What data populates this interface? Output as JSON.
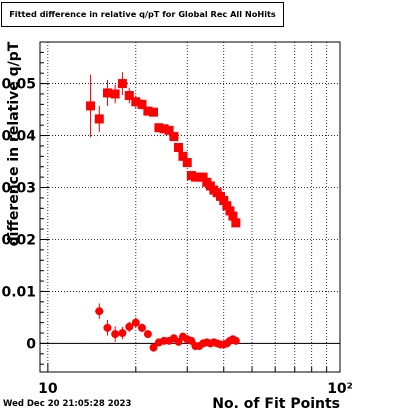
{
  "title": "Fitted difference in relative q/pT for Global Rec All NoHits",
  "timestamp": "Wed Dec 20 21:05:28 2023",
  "colors": {
    "marker": "#ff0000",
    "axis": "#000000",
    "grid": "#000000"
  },
  "chart_data": {
    "type": "scatter",
    "title": "Fitted difference in relative q/pT for Global Rec All NoHits",
    "xlabel": "No. of Fit Points",
    "ylabel": "difference in relative q/pT",
    "x_scale": "log",
    "xlim": [
      9.4,
      100
    ],
    "ylim": [
      -0.0055,
      0.058
    ],
    "grid": true,
    "x_ticks": [
      {
        "value": 10,
        "label": "10"
      },
      {
        "value": 100,
        "label": "10²"
      }
    ],
    "y_ticks": [
      {
        "value": 0,
        "label": "0"
      },
      {
        "value": 0.01,
        "label": "0.01"
      },
      {
        "value": 0.02,
        "label": "0.02"
      },
      {
        "value": 0.03,
        "label": "0.03"
      },
      {
        "value": 0.04,
        "label": "0.04"
      },
      {
        "value": 0.05,
        "label": "0.05"
      }
    ],
    "series": [
      {
        "marker": "square",
        "color": "#ff0000",
        "points": [
          {
            "x": 14,
            "y": 0.0457,
            "err": 0.006
          },
          {
            "x": 15,
            "y": 0.0432,
            "err": 0.0025
          },
          {
            "x": 16,
            "y": 0.0482,
            "err": 0.0025
          },
          {
            "x": 17,
            "y": 0.048,
            "err": 0.0018
          },
          {
            "x": 18,
            "y": 0.05,
            "err": 0.0022
          },
          {
            "x": 19,
            "y": 0.0477,
            "err": 0.0015
          },
          {
            "x": 20,
            "y": 0.0465,
            "err": 0.0012
          },
          {
            "x": 21,
            "y": 0.046,
            "err": 0.001
          },
          {
            "x": 22,
            "y": 0.0447,
            "err": 0.0008
          },
          {
            "x": 23,
            "y": 0.0445,
            "err": 0.0007
          },
          {
            "x": 24,
            "y": 0.0415,
            "err": 0.0006
          },
          {
            "x": 25,
            "y": 0.0413,
            "err": 0.0005
          },
          {
            "x": 26,
            "y": 0.041,
            "err": 0.0005
          },
          {
            "x": 27,
            "y": 0.0398,
            "err": 0.0004
          },
          {
            "x": 28,
            "y": 0.0377,
            "err": 0.0004
          },
          {
            "x": 29,
            "y": 0.036,
            "err": 0.0004
          },
          {
            "x": 30,
            "y": 0.0348,
            "err": 0.0003
          },
          {
            "x": 31,
            "y": 0.0323,
            "err": 0.0003
          },
          {
            "x": 32,
            "y": 0.032,
            "err": 0.0003
          },
          {
            "x": 33,
            "y": 0.032,
            "err": 0.0003
          },
          {
            "x": 34,
            "y": 0.032,
            "err": 0.0003
          },
          {
            "x": 35,
            "y": 0.031,
            "err": 0.0003
          },
          {
            "x": 36,
            "y": 0.0303,
            "err": 0.0003
          },
          {
            "x": 37,
            "y": 0.0295,
            "err": 0.0003
          },
          {
            "x": 38,
            "y": 0.029,
            "err": 0.0003
          },
          {
            "x": 39,
            "y": 0.0283,
            "err": 0.0003
          },
          {
            "x": 40,
            "y": 0.0275,
            "err": 0.0003
          },
          {
            "x": 41,
            "y": 0.0265,
            "err": 0.0003
          },
          {
            "x": 42,
            "y": 0.0255,
            "err": 0.0003
          },
          {
            "x": 43,
            "y": 0.0245,
            "err": 0.0003
          },
          {
            "x": 44,
            "y": 0.0232,
            "err": 0.0003
          }
        ]
      },
      {
        "marker": "circle",
        "color": "#ff0000",
        "points": [
          {
            "x": 15,
            "y": 0.0062,
            "err": 0.0015
          },
          {
            "x": 16,
            "y": 0.003,
            "err": 0.0015
          },
          {
            "x": 17,
            "y": 0.0018,
            "err": 0.0015
          },
          {
            "x": 18,
            "y": 0.002,
            "err": 0.0012
          },
          {
            "x": 19,
            "y": 0.0032,
            "err": 0.001
          },
          {
            "x": 20,
            "y": 0.004,
            "err": 0.001
          },
          {
            "x": 21,
            "y": 0.003,
            "err": 0.0008
          },
          {
            "x": 22,
            "y": 0.0018,
            "err": 0.0007
          },
          {
            "x": 23,
            "y": -0.0008,
            "err": 0.0008
          },
          {
            "x": 24,
            "y": 0.0002,
            "err": 0.0006
          },
          {
            "x": 25,
            "y": 0.0005,
            "err": 0.0005
          },
          {
            "x": 26,
            "y": 0.0005,
            "err": 0.0005
          },
          {
            "x": 27,
            "y": 0.001,
            "err": 0.0005
          },
          {
            "x": 28,
            "y": 0.0003,
            "err": 0.0004
          },
          {
            "x": 29,
            "y": 0.0013,
            "err": 0.0004
          },
          {
            "x": 30,
            "y": 0.0008,
            "err": 0.0004
          },
          {
            "x": 31,
            "y": 0.0005,
            "err": 0.0004
          },
          {
            "x": 32,
            "y": -0.0005,
            "err": 0.0003
          },
          {
            "x": 33,
            "y": -0.0005,
            "err": 0.0003
          },
          {
            "x": 34,
            "y": 0.0,
            "err": 0.0003
          },
          {
            "x": 35,
            "y": 0.0002,
            "err": 0.0003
          },
          {
            "x": 36,
            "y": 0.0,
            "err": 0.0003
          },
          {
            "x": 37,
            "y": 0.0002,
            "err": 0.0003
          },
          {
            "x": 38,
            "y": 0.0,
            "err": 0.0003
          },
          {
            "x": 39,
            "y": -0.0002,
            "err": 0.0003
          },
          {
            "x": 40,
            "y": -0.0002,
            "err": 0.0003
          },
          {
            "x": 41,
            "y": 0.0,
            "err": 0.0003
          },
          {
            "x": 42,
            "y": 0.0005,
            "err": 0.0003
          },
          {
            "x": 43,
            "y": 0.0008,
            "err": 0.0003
          },
          {
            "x": 44,
            "y": 0.0005,
            "err": 0.0003
          }
        ]
      }
    ]
  }
}
